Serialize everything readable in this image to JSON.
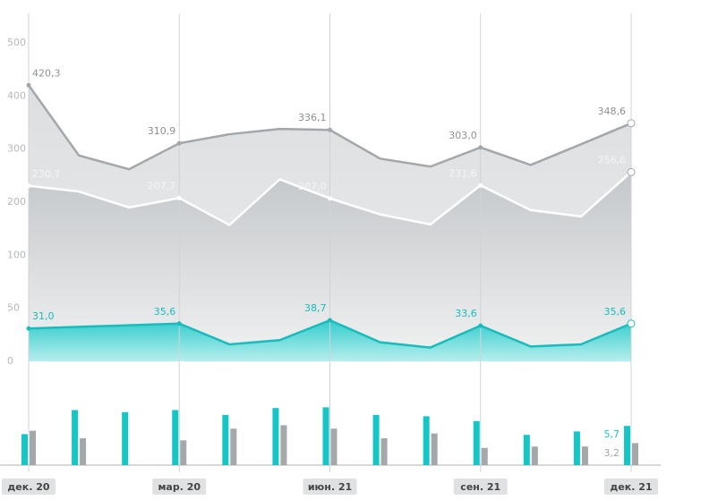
{
  "chart_data": {
    "type": "area-bar",
    "categories": [
      "дек. 20",
      null,
      null,
      "мар. 20",
      null,
      null,
      "июн. 21",
      null,
      null,
      "сен. 21",
      null,
      null,
      "дек. 21"
    ],
    "ylim": [
      0,
      500
    ],
    "yticks": [
      0,
      50,
      100,
      200,
      300,
      400,
      500
    ],
    "grid": true,
    "series": [
      {
        "color": "#a9adb2",
        "values": [
          420.3,
          288,
          262,
          310.9,
          328,
          338,
          336.1,
          282,
          267,
          303.0,
          270,
          309,
          348.6
        ],
        "value_labels": [
          "420,3",
          null,
          null,
          "310,9",
          null,
          null,
          "336,1",
          null,
          null,
          "303,0",
          null,
          null,
          "348,6"
        ]
      },
      {
        "color": "#ffffff",
        "values": [
          230.7,
          220,
          190,
          207.7,
          157,
          243,
          207.0,
          177,
          158,
          231.6,
          185,
          173,
          256.6
        ],
        "value_labels": [
          "230,7",
          null,
          null,
          "207,7",
          null,
          null,
          "207,0",
          null,
          null,
          "231,6",
          null,
          null,
          "256,6"
        ]
      },
      {
        "color": "#1ec8c8",
        "values": [
          31.0,
          32.5,
          34,
          35.6,
          16,
          20,
          38.7,
          18,
          13,
          33.6,
          14,
          16,
          35.6
        ],
        "value_labels": [
          "31,0",
          null,
          null,
          "35,6",
          null,
          null,
          "38,7",
          null,
          null,
          "33,6",
          null,
          null,
          "35,6"
        ]
      },
      {
        "color": "#16c6c6",
        "axis": "y2",
        "values": [
          4.5,
          8.0,
          7.7,
          8.0,
          7.3,
          8.3,
          8.4,
          7.3,
          7.1,
          6.4,
          4.4,
          4.9,
          5.7
        ],
        "value_labels": [
          null,
          null,
          null,
          null,
          null,
          null,
          null,
          null,
          null,
          null,
          null,
          null,
          "5,7"
        ]
      },
      {
        "color": "#a4a7ab",
        "axis": "y2",
        "values": [
          5.0,
          3.9,
          null,
          3.6,
          5.3,
          5.8,
          5.3,
          3.9,
          4.6,
          2.5,
          2.7,
          2.7,
          3.2
        ],
        "value_labels": [
          null,
          null,
          null,
          null,
          null,
          null,
          null,
          null,
          null,
          null,
          null,
          null,
          "3,2"
        ]
      }
    ],
    "y2lim": [
      0,
      13
    ]
  }
}
